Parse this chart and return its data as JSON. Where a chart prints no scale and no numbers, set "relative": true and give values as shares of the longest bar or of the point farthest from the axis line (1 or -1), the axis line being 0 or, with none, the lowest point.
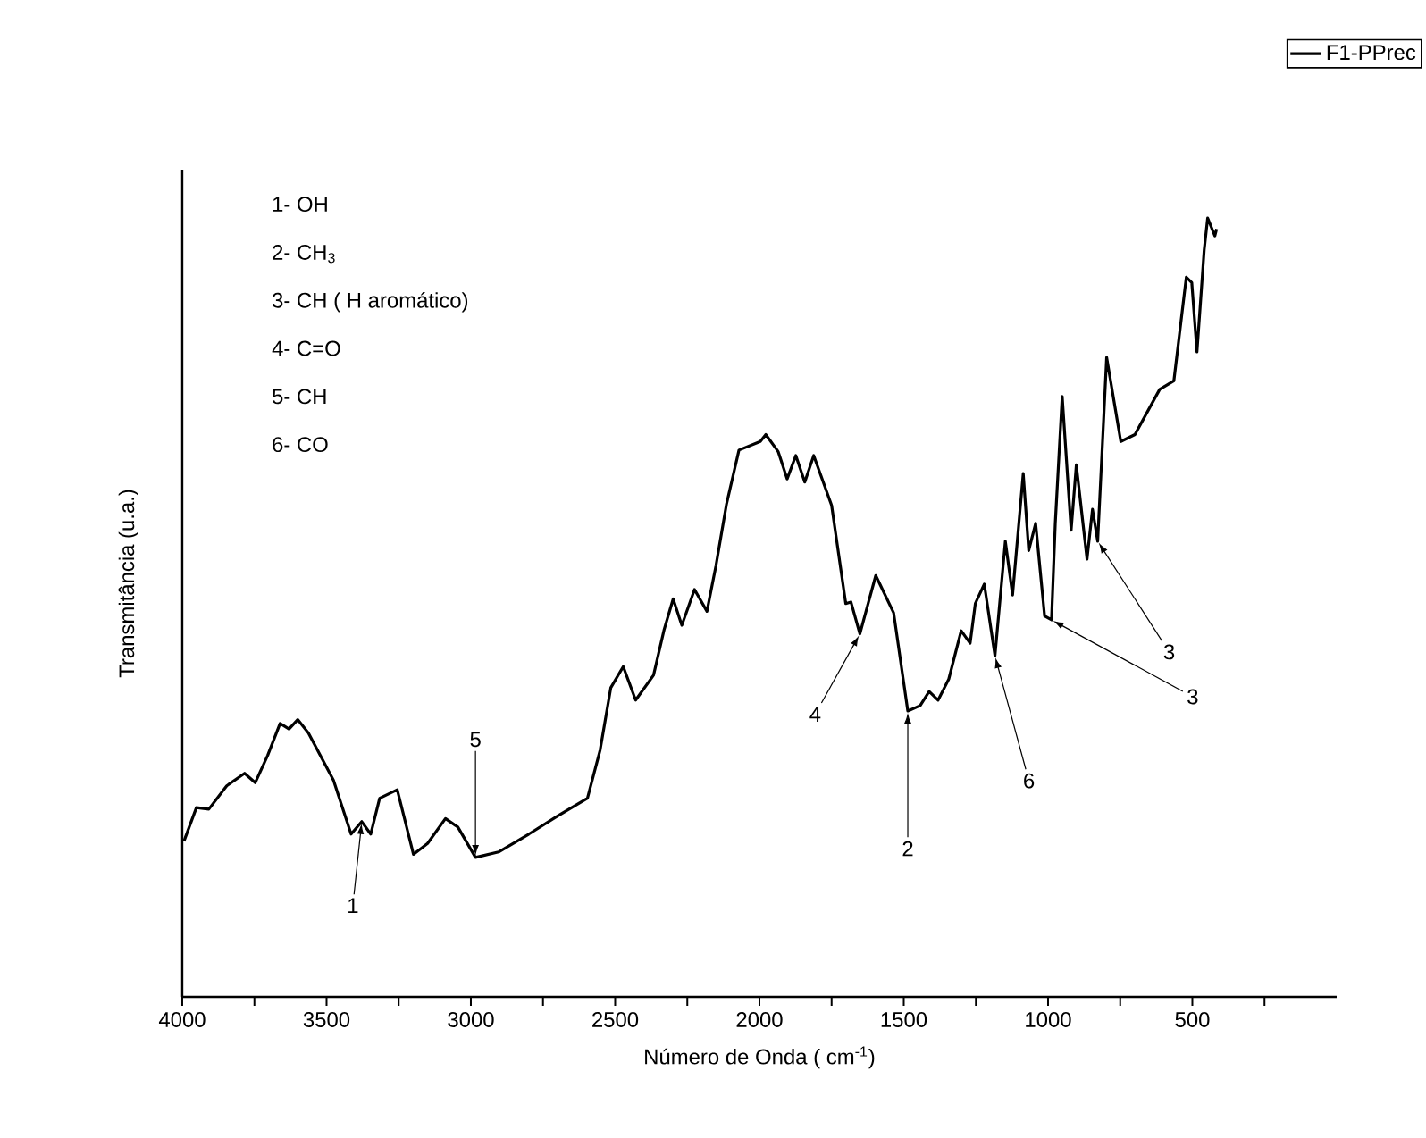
{
  "chart_data": {
    "type": "line",
    "relative": true,
    "xlabel": "Número de Onda  ( cm$^{-1}$)",
    "ylabel": "Transmitância  (u.a.)",
    "xlim": [
      4000,
      0
    ],
    "xticks": [
      4000,
      {
        "value": 3750,
        "label": null
      },
      3500,
      {
        "value": 3250,
        "label": null
      },
      3000,
      {
        "value": 2750,
        "label": null
      },
      2500,
      {
        "value": 2250,
        "label": null
      },
      2000,
      {
        "value": 1750,
        "label": null
      },
      1500,
      {
        "value": 1250,
        "label": null
      },
      1000,
      {
        "value": 750,
        "label": null
      },
      500,
      {
        "value": 250,
        "label": null
      }
    ],
    "legend": "top right",
    "annotations": [
      "1- OH",
      "2- CH$_{3}$",
      "3- CH  ( H aromático)",
      "4- C=O",
      "5- CH",
      "6- CO",
      {
        "text": "1",
        "x": 3378,
        "y": 0.225
      },
      {
        "text": "5",
        "x": 2984,
        "y": 0.179
      },
      {
        "text": "4",
        "x": 1652,
        "y": 0.466
      },
      {
        "text": "2",
        "x": 1486,
        "y": 0.367
      },
      {
        "text": "6",
        "x": 1184,
        "y": 0.438
      },
      {
        "text": "3",
        "x": 988,
        "y": 0.484
      },
      {
        "text": "3",
        "x": 828,
        "y": 0.585
      }
    ],
    "series": [
      {
        "name": "F1-PPrec",
        "color": "#000000",
        "x": [
          3994,
          3951,
          3908,
          3846,
          3784,
          3747,
          3704,
          3661,
          3630,
          3600,
          3563,
          3476,
          3415,
          3378,
          3347,
          3316,
          3255,
          3199,
          3150,
          3088,
          3045,
          2984,
          2904,
          2799,
          2700,
          2596,
          2552,
          2515,
          2472,
          2429,
          2367,
          2330,
          2299,
          2269,
          2225,
          2182,
          2151,
          2114,
          2071,
          1997,
          1978,
          1935,
          1904,
          1874,
          1843,
          1812,
          1750,
          1701,
          1683,
          1652,
          1597,
          1535,
          1486,
          1443,
          1412,
          1381,
          1344,
          1301,
          1270,
          1252,
          1221,
          1184,
          1148,
          1123,
          1086,
          1067,
          1043,
          1012,
          988,
          975,
          951,
          920,
          902,
          865,
          846,
          828,
          797,
          748,
          699,
          613,
          564,
          521,
          502,
          484,
          459,
          447,
          422,
          416
        ],
        "values": [
          0.2,
          0.243,
          0.241,
          0.271,
          0.287,
          0.275,
          0.31,
          0.351,
          0.344,
          0.356,
          0.339,
          0.278,
          0.209,
          0.225,
          0.209,
          0.255,
          0.266,
          0.183,
          0.197,
          0.229,
          0.218,
          0.179,
          0.186,
          0.209,
          0.232,
          0.255,
          0.317,
          0.397,
          0.424,
          0.381,
          0.413,
          0.472,
          0.511,
          0.477,
          0.523,
          0.495,
          0.553,
          0.633,
          0.702,
          0.713,
          0.722,
          0.7,
          0.665,
          0.695,
          0.661,
          0.695,
          0.631,
          0.505,
          0.507,
          0.466,
          0.541,
          0.493,
          0.367,
          0.374,
          0.392,
          0.381,
          0.408,
          0.47,
          0.454,
          0.505,
          0.53,
          0.438,
          0.585,
          0.516,
          0.672,
          0.573,
          0.608,
          0.489,
          0.484,
          0.608,
          0.771,
          0.599,
          0.683,
          0.562,
          0.626,
          0.585,
          0.821,
          0.713,
          0.722,
          0.78,
          0.791,
          0.924,
          0.917,
          0.828,
          0.959,
          1.0,
          0.977,
          0.986
        ]
      }
    ]
  }
}
